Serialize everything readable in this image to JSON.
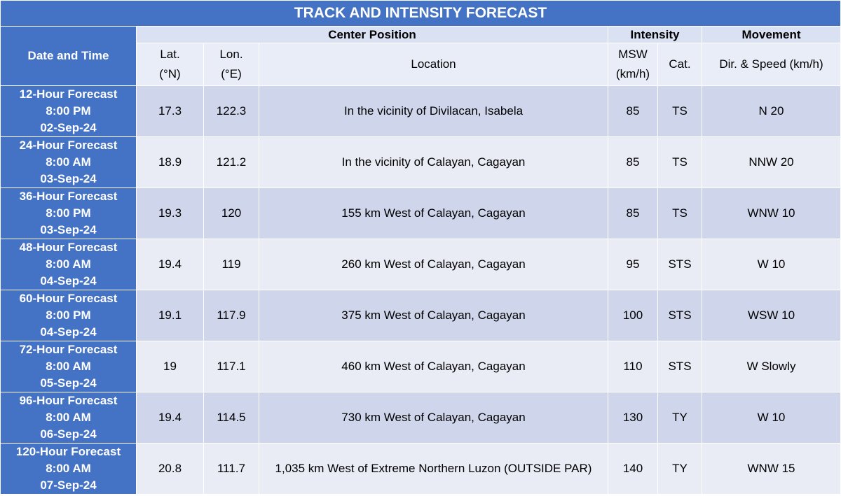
{
  "title": "TRACK AND INTENSITY FORECAST",
  "headers": {
    "date_time": "Date and Time",
    "center_position": "Center Position",
    "intensity": "Intensity",
    "movement": "Movement",
    "lat_line1": "Lat.",
    "lat_line2": "(°N)",
    "lon_line1": "Lon.",
    "lon_line2": "(°E)",
    "location": "Location",
    "msw_line1": "MSW",
    "msw_line2": "(km/h)",
    "cat": "Cat.",
    "dir_speed": "Dir. & Speed (km/h)"
  },
  "rows": [
    {
      "forecast": "12-Hour Forecast",
      "time": "8:00 PM",
      "date": "02-Sep-24",
      "lat": "17.3",
      "lon": "122.3",
      "location": "In the vicinity of Divilacan, Isabela",
      "msw": "85",
      "cat": "TS",
      "movement": "N 20"
    },
    {
      "forecast": "24-Hour Forecast",
      "time": "8:00 AM",
      "date": "03-Sep-24",
      "lat": "18.9",
      "lon": "121.2",
      "location": "In the vicinity of Calayan, Cagayan",
      "msw": "85",
      "cat": "TS",
      "movement": "NNW 20"
    },
    {
      "forecast": "36-Hour Forecast",
      "time": "8:00 PM",
      "date": "03-Sep-24",
      "lat": "19.3",
      "lon": "120",
      "location": "155 km West of Calayan, Cagayan",
      "msw": "85",
      "cat": "TS",
      "movement": "WNW 10"
    },
    {
      "forecast": "48-Hour Forecast",
      "time": "8:00 AM",
      "date": "04-Sep-24",
      "lat": "19.4",
      "lon": "119",
      "location": "260 km West of Calayan, Cagayan",
      "msw": "95",
      "cat": "STS",
      "movement": "W 10"
    },
    {
      "forecast": "60-Hour Forecast",
      "time": "8:00 PM",
      "date": "04-Sep-24",
      "lat": "19.1",
      "lon": "117.9",
      "location": "375 km West of Calayan, Cagayan",
      "msw": "100",
      "cat": "STS",
      "movement": "WSW 10"
    },
    {
      "forecast": "72-Hour Forecast",
      "time": "8:00 AM",
      "date": "05-Sep-24",
      "lat": "19",
      "lon": "117.1",
      "location": "460 km West of Calayan, Cagayan",
      "msw": "110",
      "cat": "STS",
      "movement": "W Slowly"
    },
    {
      "forecast": "96-Hour Forecast",
      "time": "8:00 AM",
      "date": "06-Sep-24",
      "lat": "19.4",
      "lon": "114.5",
      "location": "730 km West of Calayan, Cagayan",
      "msw": "130",
      "cat": "TY",
      "movement": "W 10"
    },
    {
      "forecast": "120-Hour Forecast",
      "time": "8:00 AM",
      "date": "07-Sep-24",
      "lat": "20.8",
      "lon": "111.7",
      "location": "1,035 km West of Extreme Northern Luzon (OUTSIDE PAR)",
      "msw": "140",
      "cat": "TY",
      "movement": "WNW 15"
    }
  ]
}
